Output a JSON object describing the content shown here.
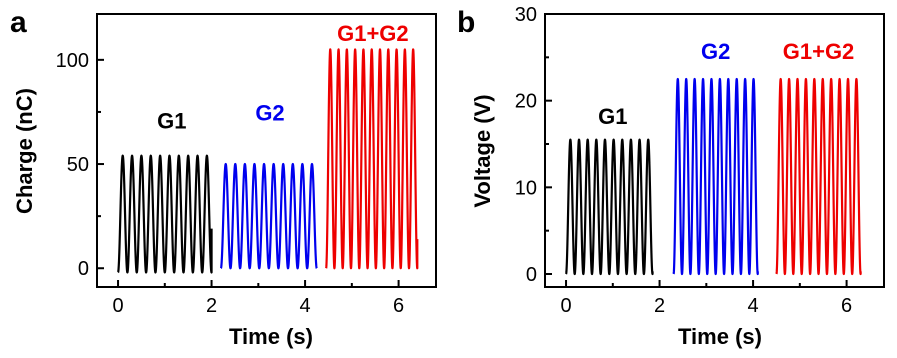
{
  "colors": {
    "g1": "#000000",
    "g2": "#0000ee",
    "g12": "#ee0000",
    "axis": "#000000"
  },
  "chart_data": [
    {
      "type": "line",
      "panel_label": "a",
      "xlabel": "Time (s)",
      "ylabel": "Charge (nC)",
      "xlim": [
        -0.45,
        6.8
      ],
      "ylim": [
        -9,
        122
      ],
      "xticks": [
        0,
        2,
        4,
        6
      ],
      "xtick_labels": [
        "0",
        "2",
        "4",
        "6"
      ],
      "yticks": [
        0,
        50,
        100
      ],
      "ytick_labels": [
        "0",
        "50",
        "100"
      ],
      "series": [
        {
          "name": "G1",
          "color_key": "g1",
          "x_start": 0.0,
          "x_end": 2.0,
          "cycles": 10,
          "min": -2,
          "max": 54,
          "end_value": 19
        },
        {
          "name": "G2",
          "color_key": "g2",
          "x_start": 2.2,
          "x_end": 4.25,
          "cycles": 10,
          "min": 0,
          "max": 50,
          "end_value": 0
        },
        {
          "name": "G1+G2",
          "color_key": "g12",
          "x_start": 4.45,
          "x_end": 6.4,
          "cycles": 11,
          "min": 0,
          "max": 105,
          "end_value": 14
        }
      ],
      "annotations": [
        {
          "text": "G1",
          "color_key": "g1",
          "x": 1.15,
          "y": 67
        },
        {
          "text": "G2",
          "color_key": "g2",
          "x": 3.25,
          "y": 71
        },
        {
          "text": "G1+G2",
          "color_key": "g12",
          "x": 5.45,
          "y": 109
        }
      ]
    },
    {
      "type": "line",
      "panel_label": "b",
      "xlabel": "Time (s)",
      "ylabel": "Voltage (V)",
      "xlim": [
        -0.45,
        6.8
      ],
      "ylim": [
        -1.5,
        30
      ],
      "xticks": [
        0,
        2,
        4,
        6
      ],
      "xtick_labels": [
        "0",
        "2",
        "4",
        "6"
      ],
      "yticks": [
        0,
        10,
        20,
        30
      ],
      "ytick_labels": [
        "0",
        "10",
        "20",
        "30"
      ],
      "series": [
        {
          "name": "G1",
          "color_key": "g1",
          "x_start": 0.0,
          "x_end": 1.85,
          "cycles": 10,
          "min": 0,
          "max": 15.5,
          "end_value": 0.3
        },
        {
          "name": "G2",
          "color_key": "g2",
          "x_start": 2.3,
          "x_end": 4.1,
          "cycles": 10,
          "min": 0,
          "max": 22.5,
          "end_value": 0.3
        },
        {
          "name": "G1+G2",
          "color_key": "g12",
          "x_start": 4.5,
          "x_end": 6.3,
          "cycles": 10,
          "min": 0,
          "max": 22.5,
          "end_value": 0.3
        }
      ],
      "annotations": [
        {
          "text": "G1",
          "color_key": "g1",
          "x": 1.0,
          "y": 17.3
        },
        {
          "text": "G2",
          "color_key": "g2",
          "x": 3.2,
          "y": 24.8
        },
        {
          "text": "G1+G2",
          "color_key": "g12",
          "x": 5.4,
          "y": 24.8
        }
      ]
    }
  ]
}
